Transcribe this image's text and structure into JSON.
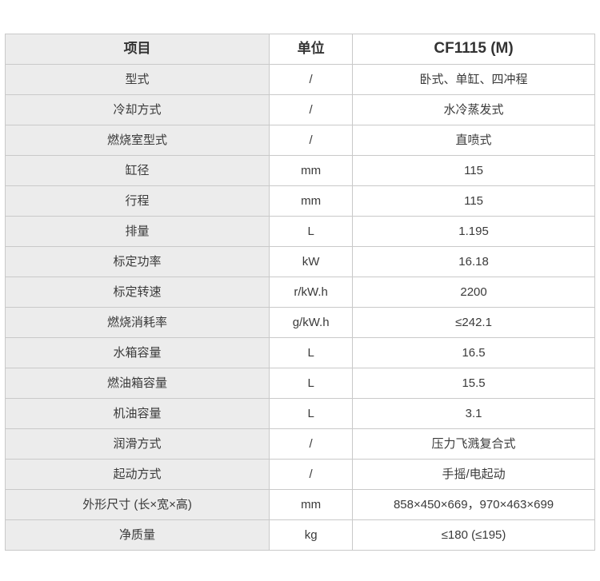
{
  "table": {
    "headers": {
      "item": "项目",
      "unit": "单位",
      "model": "CF1115 (M)"
    },
    "rows": [
      {
        "item": "型式",
        "unit": "/",
        "value": "卧式、单缸、四冲程"
      },
      {
        "item": "冷却方式",
        "unit": "/",
        "value": "水冷蒸发式"
      },
      {
        "item": "燃烧室型式",
        "unit": "/",
        "value": "直喷式"
      },
      {
        "item": "缸径",
        "unit": "mm",
        "value": "115"
      },
      {
        "item": "行程",
        "unit": "mm",
        "value": "115"
      },
      {
        "item": "排量",
        "unit": "L",
        "value": "1.195"
      },
      {
        "item": "标定功率",
        "unit": "kW",
        "value": "16.18"
      },
      {
        "item": "标定转速",
        "unit": "r/kW.h",
        "value": "2200"
      },
      {
        "item": "燃烧消耗率",
        "unit": "g/kW.h",
        "value": "≤242.1"
      },
      {
        "item": "水箱容量",
        "unit": "L",
        "value": "16.5"
      },
      {
        "item": "燃油箱容量",
        "unit": "L",
        "value": "15.5"
      },
      {
        "item": "机油容量",
        "unit": "L",
        "value": "3.1"
      },
      {
        "item": "润滑方式",
        "unit": "/",
        "value": "压力飞溅复合式"
      },
      {
        "item": "起动方式",
        "unit": "/",
        "value": "手摇/电起动"
      },
      {
        "item": "外形尺寸 (长×宽×高)",
        "unit": "mm",
        "value": "858×450×669，970×463×699"
      },
      {
        "item": "净质量",
        "unit": "kg",
        "value": "≤180 (≤195)"
      }
    ],
    "colors": {
      "item_column_bg": "#ececec",
      "cell_bg": "#ffffff",
      "border": "#c9c9c9",
      "text": "#3a3a3a"
    }
  }
}
